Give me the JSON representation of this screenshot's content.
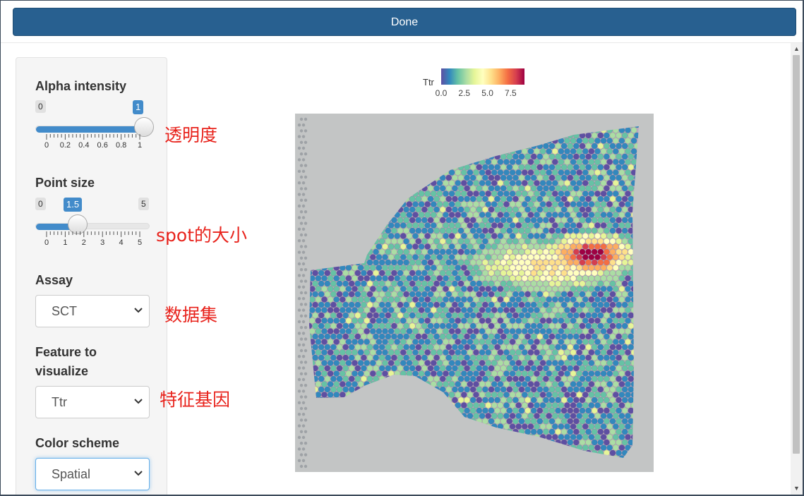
{
  "toolbar": {
    "done_label": "Done"
  },
  "sidebar": {
    "alpha": {
      "label": "Alpha intensity",
      "min": "0",
      "max": "1",
      "value": "1",
      "value_num": 1,
      "max_num": 1,
      "ticks": [
        "0",
        "0.2",
        "0.4",
        "0.6",
        "0.8",
        "1"
      ]
    },
    "point_size": {
      "label": "Point size",
      "min": "0",
      "max": "5",
      "value": "1.5",
      "value_num": 1.5,
      "max_num": 5,
      "ticks": [
        "0",
        "1",
        "2",
        "3",
        "4",
        "5"
      ]
    },
    "assay": {
      "label": "Assay",
      "value": "SCT"
    },
    "feature": {
      "label_line1": "Feature to",
      "label_line2": "visualize",
      "value": "Ttr"
    },
    "color_scheme": {
      "label": "Color scheme",
      "value": "Spatial"
    }
  },
  "annotations": {
    "alpha": "透明度",
    "point_size": "spot的大小",
    "assay": "数据集",
    "feature": "特征基因"
  },
  "legend": {
    "title": "Ttr",
    "ticks": [
      "0.0",
      "2.5",
      "5.0",
      "7.5"
    ],
    "colors": [
      "#5e4fa2",
      "#3288bd",
      "#66c2a5",
      "#abdda4",
      "#e6f598",
      "#ffffbf",
      "#fee08b",
      "#fdae61",
      "#f46d43",
      "#d53e4f",
      "#9e0142"
    ]
  },
  "colors": {
    "accent": "#286090",
    "annotation": "#e8231c",
    "tissue_background": "#c3c5c5"
  },
  "icons": {
    "select_arrow": "chevron-down-icon",
    "scroll_up": "scroll-up-arrow-icon",
    "scroll_down": "scroll-down-arrow-icon"
  }
}
